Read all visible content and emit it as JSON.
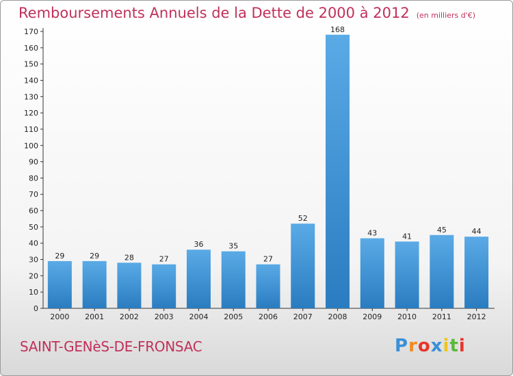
{
  "title": "Remboursements Annuels de la Dette de 2000 à 2012",
  "subtitle": "(en milliers d'€)",
  "commune": "SAINT-GENèS-DE-FRONSAC",
  "logo": {
    "letters": [
      "P",
      "r",
      "o",
      "x",
      "i",
      "t",
      "i"
    ],
    "colors": [
      "#3a8fd8",
      "#f08a1c",
      "#e8352a",
      "#3a8fd8",
      "#f0c419",
      "#5ab93a",
      "#e8352a"
    ]
  },
  "colors": {
    "bar_top": "#5aaae6",
    "bar_bottom": "#2a7cc0",
    "title": "#c0305a"
  },
  "chart_data": {
    "type": "bar",
    "categories": [
      "2000",
      "2001",
      "2002",
      "2003",
      "2004",
      "2005",
      "2006",
      "2007",
      "2008",
      "2009",
      "2010",
      "2011",
      "2012"
    ],
    "values": [
      29,
      29,
      28,
      27,
      36,
      35,
      27,
      52,
      168,
      43,
      41,
      45,
      44
    ],
    "ylim": [
      0,
      170
    ],
    "ytick_step": 10,
    "grid": false
  }
}
